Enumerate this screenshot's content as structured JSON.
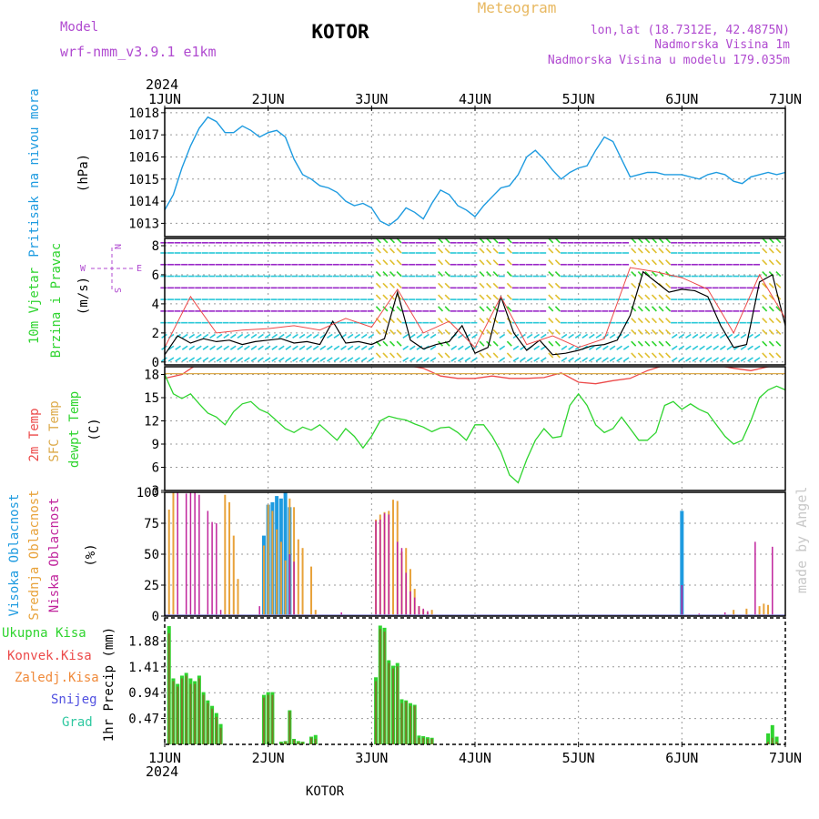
{
  "header": {
    "model_label": "Model",
    "model_name": "wrf-nmm_v3.9.1  e1km",
    "station": "KOTOR",
    "meteogram": "Meteogram",
    "lonlat": "lon,lat (18.7312E, 42.4875N)",
    "elevation": "Nadmorska Visina 1m",
    "model_elevation": "Nadmorska Visina u modelu 179.035m",
    "year_top": "2024",
    "year_bottom": "2024",
    "footer_station": "KOTOR",
    "credit": "made by Angel"
  },
  "colors": {
    "pressure": "#1e9be0",
    "temp2m": "#ec4a4a",
    "sfc_temp": "#dcaa4a",
    "dewpoint": "#2ed42e",
    "cloud_high": "#1e9be0",
    "cloud_mid": "#e8a23a",
    "cloud_low": "#c0249c",
    "precip_total": "#2ed42e",
    "precip_conv": "#ec4a4a",
    "precip_frozen": "#f08a3a",
    "snow": "#5050e0",
    "hail": "#2ec8a0",
    "wind_purple": "#9a28c8",
    "wind_cyan": "#28c8d8",
    "wind_yellow": "#e0c030",
    "wind_speed_line": "#000000",
    "gust": "#ec4a4a",
    "title": "#000000",
    "model_text": "#b04ad0"
  },
  "x_axis": {
    "day_ticks": [
      "1JUN",
      "2JUN",
      "3JUN",
      "4JUN",
      "5JUN",
      "6JUN",
      "7JUN"
    ],
    "hour_range": [
      0,
      144
    ]
  },
  "panels": {
    "pressure": {
      "label": "Pritisak na nivou mora",
      "unit": "(hPa)"
    },
    "wind": {
      "label1": "10m Vjetar",
      "label2": "Brzina i Pravac",
      "unit": "(m/s)",
      "compass_w": "W",
      "compass_e": "E",
      "compass_n": "N",
      "compass_s": "S"
    },
    "temp": {
      "label1": "2m Temp",
      "label2": "SFC Temp",
      "label3": "dewpt Temp",
      "unit": "(C)"
    },
    "cloud": {
      "label1": "Visoka Oblacnost",
      "label2": "Srednja Oblacnost",
      "label3": "Niska Oblacnost",
      "unit": "(%)"
    },
    "precip": {
      "axis_label": "1hr Precip (mm)",
      "legend": [
        "Ukupna Kisa",
        "Konvek.Kisa",
        "Zaledj.Kisa",
        "Snijeg",
        "Grad"
      ]
    }
  },
  "chart_data": [
    {
      "type": "line",
      "id": "pressure",
      "title": "",
      "xlabel": "",
      "ylabel": "Pritisak na nivou mora (hPa)",
      "ylim": [
        1012.4,
        1018.2
      ],
      "yticks": [
        1013,
        1014,
        1015,
        1016,
        1017,
        1018
      ],
      "series": [
        {
          "name": "Pritisak na nivou mora",
          "x": [
            0,
            2,
            4,
            6,
            8,
            10,
            12,
            14,
            16,
            18,
            20,
            22,
            24,
            26,
            28,
            30,
            32,
            34,
            36,
            38,
            40,
            42,
            44,
            46,
            48,
            50,
            52,
            54,
            56,
            58,
            60,
            62,
            64,
            66,
            68,
            70,
            72,
            74,
            76,
            78,
            80,
            82,
            84,
            86,
            88,
            90,
            92,
            94,
            96,
            98,
            100,
            102,
            104,
            106,
            108,
            110,
            112,
            114,
            116,
            118,
            120,
            122,
            124,
            126,
            128,
            130,
            132,
            134,
            136,
            138,
            140,
            142,
            144
          ],
          "values": [
            1013.6,
            1014.3,
            1015.5,
            1016.5,
            1017.3,
            1017.8,
            1017.6,
            1017.1,
            1017.1,
            1017.4,
            1017.2,
            1016.9,
            1017.1,
            1017.2,
            1016.9,
            1015.9,
            1015.2,
            1015.0,
            1014.7,
            1014.6,
            1014.4,
            1014.0,
            1013.8,
            1013.9,
            1013.7,
            1013.1,
            1012.9,
            1013.2,
            1013.7,
            1013.5,
            1013.2,
            1013.9,
            1014.5,
            1014.3,
            1013.8,
            1013.6,
            1013.3,
            1013.8,
            1014.2,
            1014.6,
            1014.7,
            1015.2,
            1016.0,
            1016.3,
            1015.9,
            1015.4,
            1015.0,
            1015.3,
            1015.5,
            1015.6,
            1016.3,
            1016.9,
            1016.7,
            1015.9,
            1015.1,
            1015.2,
            1015.3,
            1015.3,
            1015.2,
            1015.2,
            1015.2,
            1015.1,
            1015.0,
            1015.2,
            1015.3,
            1015.2,
            1014.9,
            1014.8,
            1015.1,
            1015.2,
            1015.3,
            1015.2,
            1015.3
          ]
        }
      ]
    },
    {
      "type": "line",
      "id": "wind",
      "title": "",
      "xlabel": "",
      "ylabel": "10m Vjetar Brzina i Pravac (m/s)",
      "ylim": [
        -0.2,
        8.5
      ],
      "yticks": [
        0,
        2,
        4,
        6,
        8
      ],
      "series": [
        {
          "name": "wind speed",
          "x": [
            0,
            3,
            6,
            9,
            12,
            15,
            18,
            21,
            24,
            27,
            30,
            33,
            36,
            39,
            42,
            45,
            48,
            51,
            54,
            57,
            60,
            63,
            66,
            69,
            72,
            75,
            78,
            81,
            84,
            87,
            90,
            93,
            96,
            99,
            102,
            105,
            108,
            111,
            114,
            117,
            120,
            123,
            126,
            129,
            132,
            135,
            138,
            141,
            144
          ],
          "values": [
            0.5,
            1.8,
            1.3,
            1.6,
            1.4,
            1.5,
            1.2,
            1.4,
            1.5,
            1.6,
            1.3,
            1.4,
            1.2,
            2.8,
            1.3,
            1.4,
            1.2,
            1.6,
            4.8,
            1.5,
            0.9,
            1.2,
            1.4,
            2.5,
            0.6,
            1.0,
            4.5,
            2.0,
            0.8,
            1.5,
            0.5,
            0.6,
            0.8,
            1.1,
            1.2,
            1.5,
            3.2,
            6.2,
            5.5,
            4.8,
            5.0,
            4.9,
            4.5,
            2.5,
            1.0,
            1.2,
            5.5,
            6.0,
            2.5
          ]
        },
        {
          "name": "gust",
          "x": [
            0,
            6,
            12,
            18,
            24,
            30,
            36,
            42,
            48,
            54,
            60,
            66,
            72,
            78,
            84,
            90,
            96,
            102,
            108,
            114,
            120,
            126,
            132,
            138,
            144
          ],
          "values": [
            1.0,
            4.5,
            2.0,
            2.2,
            2.3,
            2.5,
            2.2,
            3.0,
            2.4,
            5.0,
            2.0,
            2.8,
            1.0,
            4.5,
            1.2,
            1.8,
            1.0,
            1.6,
            6.5,
            6.2,
            5.8,
            5.0,
            2.0,
            6.0,
            3.0
          ]
        }
      ]
    },
    {
      "type": "line",
      "id": "temperature",
      "title": "",
      "xlabel": "",
      "ylabel": "Temperature (C)",
      "ylim": [
        3,
        19
      ],
      "yticks": [
        3,
        6,
        9,
        12,
        15,
        18
      ],
      "series": [
        {
          "name": "2m Temp",
          "x": [
            0,
            4,
            8,
            12,
            16,
            20,
            24,
            28,
            32,
            36,
            40,
            44,
            48,
            52,
            56,
            60,
            64,
            68,
            72,
            76,
            80,
            84,
            88,
            92,
            96,
            100,
            104,
            108,
            112,
            116,
            120,
            124,
            128,
            132,
            136,
            140,
            144
          ],
          "values": [
            17.5,
            18.0,
            19.5,
            20.5,
            19.8,
            20.2,
            19.5,
            20.0,
            19.2,
            20.5,
            20.0,
            19.6,
            19.8,
            19.4,
            19.2,
            18.8,
            17.8,
            17.5,
            17.5,
            17.8,
            17.5,
            17.5,
            17.6,
            18.2,
            17.0,
            16.8,
            17.2,
            17.5,
            18.5,
            19.2,
            19.0,
            19.2,
            19.2,
            18.8,
            18.5,
            19.0,
            19.2
          ]
        },
        {
          "name": "SFC Temp",
          "x": [
            0,
            144
          ],
          "values": [
            18.1,
            18.1
          ]
        },
        {
          "name": "dewpt Temp",
          "x": [
            0,
            2,
            4,
            6,
            8,
            10,
            12,
            14,
            16,
            18,
            20,
            22,
            24,
            26,
            28,
            30,
            32,
            34,
            36,
            38,
            40,
            42,
            44,
            46,
            48,
            50,
            52,
            54,
            56,
            58,
            60,
            62,
            64,
            66,
            68,
            70,
            72,
            74,
            76,
            78,
            80,
            82,
            84,
            86,
            88,
            90,
            92,
            94,
            96,
            98,
            100,
            102,
            104,
            106,
            108,
            110,
            112,
            114,
            116,
            118,
            120,
            122,
            124,
            126,
            128,
            130,
            132,
            134,
            136,
            138,
            140,
            142,
            144
          ],
          "values": [
            18.0,
            15.5,
            14.9,
            15.5,
            14.2,
            13.0,
            12.5,
            11.5,
            13.2,
            14.2,
            14.5,
            13.5,
            13.0,
            12.0,
            11.0,
            10.5,
            11.2,
            10.8,
            11.5,
            10.5,
            9.5,
            11.0,
            10.0,
            8.5,
            10.0,
            12.0,
            12.6,
            12.3,
            12.1,
            11.6,
            11.2,
            10.6,
            11.1,
            11.2,
            10.5,
            9.5,
            11.5,
            11.5,
            10.0,
            8.0,
            5.0,
            4.0,
            7.0,
            9.5,
            11.0,
            9.8,
            10.0,
            14.0,
            15.5,
            14.0,
            11.5,
            10.5,
            11.0,
            12.5,
            11.0,
            9.5,
            9.5,
            10.5,
            14.0,
            14.5,
            13.5,
            14.2,
            13.5,
            13.0,
            11.5,
            10.0,
            9.0,
            9.5,
            12.0,
            15.0,
            16.0,
            16.5,
            16.0
          ]
        }
      ]
    },
    {
      "type": "bar",
      "id": "cloud_cover",
      "title": "",
      "xlabel": "",
      "ylabel": "Oblacnost (%)",
      "ylim": [
        0,
        100
      ],
      "yticks": [
        0,
        25,
        50,
        75,
        100
      ],
      "series": [
        {
          "name": "Visoka Oblacnost",
          "x": [
            23,
            24,
            25,
            26,
            27,
            28,
            29,
            120
          ],
          "values": [
            65,
            90,
            92,
            97,
            95,
            100,
            88,
            85
          ]
        },
        {
          "name": "Srednja Oblacnost",
          "x": [
            1,
            2,
            14,
            15,
            16,
            17,
            23,
            24,
            25,
            26,
            27,
            28,
            29,
            30,
            31,
            32,
            34,
            35,
            49,
            50,
            51,
            52,
            53,
            54,
            55,
            56,
            57,
            58,
            59,
            60,
            61,
            62,
            132,
            135,
            138,
            139,
            140
          ],
          "values": [
            86,
            100,
            98,
            92,
            65,
            30,
            57,
            90,
            85,
            70,
            60,
            45,
            95,
            88,
            62,
            55,
            40,
            5,
            78,
            82,
            84,
            85,
            94,
            93,
            52,
            55,
            38,
            22,
            8,
            5,
            3,
            5,
            5,
            6,
            8,
            10,
            9
          ]
        },
        {
          "name": "Niska Oblacnost",
          "x": [
            3,
            5,
            6,
            7,
            8,
            10,
            11,
            12,
            13,
            22,
            29,
            30,
            41,
            49,
            50,
            51,
            52,
            54,
            55,
            56,
            57,
            58,
            59,
            60,
            61,
            120,
            124,
            130,
            137,
            141
          ],
          "values": [
            100,
            99,
            100,
            100,
            98,
            85,
            76,
            75,
            5,
            8,
            50,
            44,
            3,
            77,
            78,
            83,
            82,
            60,
            55,
            35,
            20,
            15,
            8,
            6,
            4,
            25,
            2,
            3,
            60,
            56
          ]
        }
      ]
    },
    {
      "type": "bar",
      "id": "precipitation",
      "title": "",
      "xlabel": "",
      "ylabel": "1hr Precip (mm)",
      "ylim": [
        0,
        2.3
      ],
      "yticks": [
        0.47,
        0.94,
        1.41,
        1.88
      ],
      "x_day_start": "1JUN",
      "series": [
        {
          "name": "Ukupna Kisa",
          "x": [
            1,
            2,
            3,
            4,
            5,
            6,
            7,
            8,
            9,
            10,
            11,
            12,
            13,
            23,
            24,
            25,
            27,
            28,
            29,
            30,
            31,
            32,
            34,
            35,
            49,
            50,
            51,
            52,
            53,
            54,
            55,
            56,
            57,
            58,
            59,
            60,
            61,
            62,
            140,
            141,
            142
          ],
          "values": [
            2.15,
            1.2,
            1.1,
            1.25,
            1.3,
            1.2,
            1.15,
            1.25,
            0.95,
            0.8,
            0.7,
            0.57,
            0.37,
            0.9,
            0.95,
            0.95,
            0.05,
            0.06,
            0.62,
            0.1,
            0.06,
            0.05,
            0.14,
            0.17,
            1.22,
            2.16,
            2.12,
            1.53,
            1.43,
            1.48,
            0.82,
            0.8,
            0.75,
            0.72,
            0.16,
            0.15,
            0.13,
            0.12,
            0.2,
            0.35,
            0.14
          ]
        },
        {
          "name": "Konvek.Kisa",
          "x": [
            1,
            2,
            3,
            4,
            5,
            6,
            7,
            8,
            9,
            10,
            11,
            12,
            13,
            23,
            24,
            25,
            27,
            28,
            29,
            30,
            31,
            32,
            34,
            35,
            49,
            50,
            51,
            52,
            53,
            54,
            55,
            56,
            57,
            58,
            59,
            60,
            61,
            62,
            140,
            141,
            142
          ],
          "values": [
            2.02,
            1.15,
            1.05,
            1.2,
            1.25,
            1.1,
            1.1,
            1.2,
            0.9,
            0.75,
            0.65,
            0.5,
            0.3,
            0.85,
            0.9,
            0.9,
            0.03,
            0.05,
            0.6,
            0.08,
            0.04,
            0.04,
            0.12,
            0.1,
            1.15,
            2.1,
            2.05,
            1.48,
            1.38,
            1.42,
            0.75,
            0.78,
            0.7,
            0.7,
            0.12,
            0.12,
            0.1,
            0.1,
            0.05,
            0.12,
            0.05
          ]
        }
      ]
    }
  ]
}
